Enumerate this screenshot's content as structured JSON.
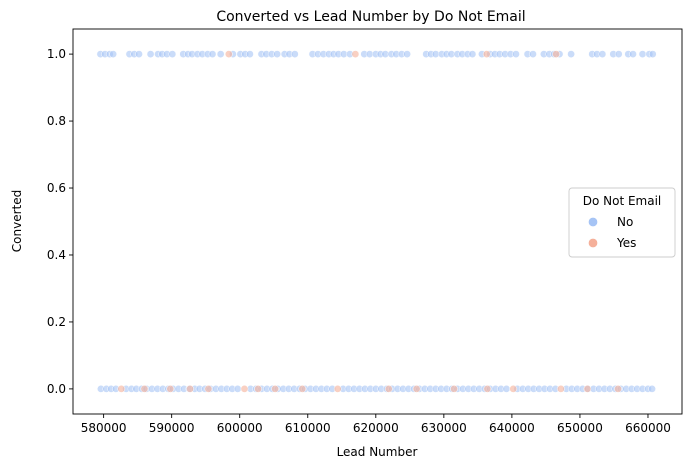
{
  "chart_data": {
    "type": "scatter",
    "title": "Converted vs Lead Number by Do Not Email",
    "xlabel": "Lead Number",
    "ylabel": "Converted",
    "xlim": [
      575500,
      665000
    ],
    "ylim": [
      -0.075,
      1.075
    ],
    "x_ticks": [
      580000,
      590000,
      600000,
      610000,
      620000,
      630000,
      640000,
      650000,
      660000
    ],
    "x_tick_labels": [
      "580000",
      "590000",
      "600000",
      "610000",
      "620000",
      "630000",
      "640000",
      "650000",
      "660000"
    ],
    "y_ticks": [
      0.0,
      0.2,
      0.4,
      0.6,
      0.8,
      1.0
    ],
    "y_tick_labels": [
      "0.0",
      "0.2",
      "0.4",
      "0.6",
      "0.8",
      "1.0"
    ],
    "grid": false,
    "legend": {
      "title": "Do Not Email",
      "placement": "right"
    },
    "series": [
      {
        "name": "No",
        "color": "#a6c4f5",
        "points": [
          [
            579533,
            1
          ],
          [
            580200,
            1
          ],
          [
            580900,
            1
          ],
          [
            581400,
            1
          ],
          [
            583800,
            1
          ],
          [
            584500,
            1
          ],
          [
            585200,
            1
          ],
          [
            586900,
            1
          ],
          [
            588000,
            1
          ],
          [
            588600,
            1
          ],
          [
            589300,
            1
          ],
          [
            590100,
            1
          ],
          [
            591700,
            1
          ],
          [
            592400,
            1
          ],
          [
            593000,
            1
          ],
          [
            593800,
            1
          ],
          [
            594500,
            1
          ],
          [
            595300,
            1
          ],
          [
            596000,
            1
          ],
          [
            597200,
            1
          ],
          [
            599000,
            1
          ],
          [
            600100,
            1
          ],
          [
            600800,
            1
          ],
          [
            601500,
            1
          ],
          [
            603200,
            1
          ],
          [
            603900,
            1
          ],
          [
            604700,
            1
          ],
          [
            605500,
            1
          ],
          [
            606600,
            1
          ],
          [
            607300,
            1
          ],
          [
            608100,
            1
          ],
          [
            610700,
            1
          ],
          [
            611500,
            1
          ],
          [
            612300,
            1
          ],
          [
            613100,
            1
          ],
          [
            613800,
            1
          ],
          [
            614500,
            1
          ],
          [
            615300,
            1
          ],
          [
            616200,
            1
          ],
          [
            618300,
            1
          ],
          [
            619100,
            1
          ],
          [
            620000,
            1
          ],
          [
            620700,
            1
          ],
          [
            621400,
            1
          ],
          [
            622300,
            1
          ],
          [
            623000,
            1
          ],
          [
            623800,
            1
          ],
          [
            624600,
            1
          ],
          [
            627400,
            1
          ],
          [
            628100,
            1
          ],
          [
            628800,
            1
          ],
          [
            629700,
            1
          ],
          [
            630400,
            1
          ],
          [
            631100,
            1
          ],
          [
            632000,
            1
          ],
          [
            632700,
            1
          ],
          [
            633500,
            1
          ],
          [
            634200,
            1
          ],
          [
            635600,
            1
          ],
          [
            636800,
            1
          ],
          [
            637500,
            1
          ],
          [
            638200,
            1
          ],
          [
            639000,
            1
          ],
          [
            639800,
            1
          ],
          [
            640600,
            1
          ],
          [
            642300,
            1
          ],
          [
            643100,
            1
          ],
          [
            644700,
            1
          ],
          [
            645500,
            1
          ],
          [
            646200,
            1
          ],
          [
            647000,
            1
          ],
          [
            648700,
            1
          ],
          [
            651800,
            1
          ],
          [
            652500,
            1
          ],
          [
            653300,
            1
          ],
          [
            654900,
            1
          ],
          [
            655700,
            1
          ],
          [
            657100,
            1
          ],
          [
            657800,
            1
          ],
          [
            659200,
            1
          ],
          [
            660200,
            1
          ],
          [
            660700,
            1
          ],
          [
            579600,
            0
          ],
          [
            580400,
            0
          ],
          [
            581100,
            0
          ],
          [
            581800,
            0
          ],
          [
            583300,
            0
          ],
          [
            584100,
            0
          ],
          [
            584800,
            0
          ],
          [
            585600,
            0
          ],
          [
            586300,
            0
          ],
          [
            587100,
            0
          ],
          [
            587900,
            0
          ],
          [
            588700,
            0
          ],
          [
            589500,
            0
          ],
          [
            590200,
            0
          ],
          [
            591000,
            0
          ],
          [
            591800,
            0
          ],
          [
            592600,
            0
          ],
          [
            593400,
            0
          ],
          [
            594100,
            0
          ],
          [
            594900,
            0
          ],
          [
            595700,
            0
          ],
          [
            596500,
            0
          ],
          [
            597300,
            0
          ],
          [
            598100,
            0
          ],
          [
            598900,
            0
          ],
          [
            599700,
            0
          ],
          [
            601600,
            0
          ],
          [
            602400,
            0
          ],
          [
            603200,
            0
          ],
          [
            604000,
            0
          ],
          [
            604800,
            0
          ],
          [
            605600,
            0
          ],
          [
            606400,
            0
          ],
          [
            607200,
            0
          ],
          [
            608000,
            0
          ],
          [
            608800,
            0
          ],
          [
            609600,
            0
          ],
          [
            610400,
            0
          ],
          [
            611200,
            0
          ],
          [
            612000,
            0
          ],
          [
            612800,
            0
          ],
          [
            613600,
            0
          ],
          [
            615200,
            0
          ],
          [
            616000,
            0
          ],
          [
            616800,
            0
          ],
          [
            617600,
            0
          ],
          [
            618400,
            0
          ],
          [
            619200,
            0
          ],
          [
            620000,
            0
          ],
          [
            620800,
            0
          ],
          [
            621600,
            0
          ],
          [
            622400,
            0
          ],
          [
            623200,
            0
          ],
          [
            624000,
            0
          ],
          [
            624800,
            0
          ],
          [
            625600,
            0
          ],
          [
            626400,
            0
          ],
          [
            627200,
            0
          ],
          [
            628000,
            0
          ],
          [
            628800,
            0
          ],
          [
            629600,
            0
          ],
          [
            630400,
            0
          ],
          [
            631200,
            0
          ],
          [
            632000,
            0
          ],
          [
            632800,
            0
          ],
          [
            633600,
            0
          ],
          [
            634400,
            0
          ],
          [
            635200,
            0
          ],
          [
            636000,
            0
          ],
          [
            636800,
            0
          ],
          [
            637600,
            0
          ],
          [
            638400,
            0
          ],
          [
            639200,
            0
          ],
          [
            640800,
            0
          ],
          [
            641600,
            0
          ],
          [
            642400,
            0
          ],
          [
            643200,
            0
          ],
          [
            644000,
            0
          ],
          [
            644800,
            0
          ],
          [
            645600,
            0
          ],
          [
            646400,
            0
          ],
          [
            648000,
            0
          ],
          [
            648800,
            0
          ],
          [
            649600,
            0
          ],
          [
            650400,
            0
          ],
          [
            651200,
            0
          ],
          [
            652000,
            0
          ],
          [
            652800,
            0
          ],
          [
            653600,
            0
          ],
          [
            654400,
            0
          ],
          [
            655200,
            0
          ],
          [
            656000,
            0
          ],
          [
            656800,
            0
          ],
          [
            657600,
            0
          ],
          [
            658400,
            0
          ],
          [
            659200,
            0
          ],
          [
            660000,
            0
          ],
          [
            660600,
            0
          ]
        ]
      },
      {
        "name": "Yes",
        "color": "#f5b09a",
        "points": [
          [
            598400,
            1
          ],
          [
            617000,
            1
          ],
          [
            636300,
            1
          ],
          [
            646500,
            1
          ],
          [
            582600,
            0
          ],
          [
            586000,
            0
          ],
          [
            589800,
            0
          ],
          [
            592700,
            0
          ],
          [
            595400,
            0
          ],
          [
            600700,
            0
          ],
          [
            602700,
            0
          ],
          [
            605200,
            0
          ],
          [
            609200,
            0
          ],
          [
            614400,
            0
          ],
          [
            621900,
            0
          ],
          [
            626000,
            0
          ],
          [
            631500,
            0
          ],
          [
            636400,
            0
          ],
          [
            640200,
            0
          ],
          [
            647200,
            0
          ],
          [
            651100,
            0
          ],
          [
            655600,
            0
          ]
        ]
      }
    ]
  }
}
